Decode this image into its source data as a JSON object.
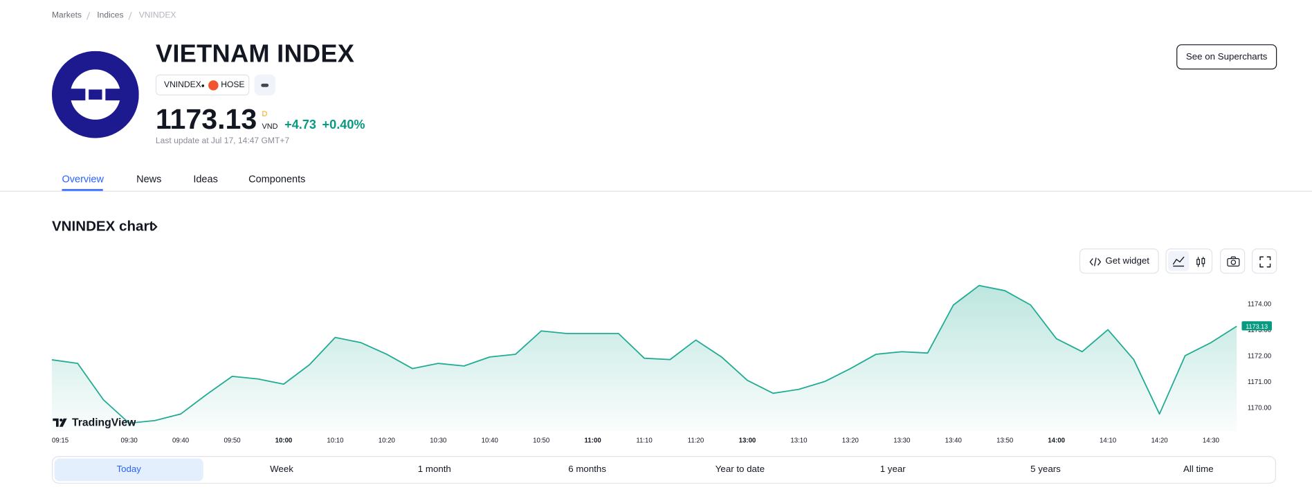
{
  "breadcrumbs": [
    "Markets",
    "Indices",
    "VNINDEX"
  ],
  "header": {
    "title": "VIETNAM INDEX",
    "symbol": "VNINDEX",
    "exchange": "HOSE",
    "price": "1173.13",
    "interval": "D",
    "currency": "VND",
    "change": "+4.73",
    "change_percent": "+0.40%",
    "last_update": "Last update at Jul 17, 14:47 GMT+7",
    "button": "See on Supercharts"
  },
  "tabs": [
    "Overview",
    "News",
    "Ideas",
    "Components"
  ],
  "chart_section": {
    "title": "VNINDEX chart",
    "get_widget": "Get widget",
    "branding": "TradingView",
    "ranges": [
      "Today",
      "Week",
      "1 month",
      "6 months",
      "Year to date",
      "1 year",
      "5 years",
      "All time"
    ]
  },
  "chart_data": {
    "type": "area",
    "color": "#22ab94",
    "x": [
      "09:15",
      "09:20",
      "09:25",
      "09:30",
      "09:35",
      "09:40",
      "09:45",
      "09:50",
      "09:55",
      "10:00",
      "10:05",
      "10:10",
      "10:15",
      "10:20",
      "10:25",
      "10:30",
      "10:35",
      "10:40",
      "10:45",
      "10:50",
      "10:55",
      "11:00",
      "11:05",
      "11:10",
      "11:15",
      "11:20",
      "11:25",
      "13:00",
      "13:05",
      "13:10",
      "13:15",
      "13:20",
      "13:25",
      "13:30",
      "13:35",
      "13:40",
      "13:45",
      "13:50",
      "13:55",
      "14:00",
      "14:05",
      "14:10",
      "14:15",
      "14:20",
      "14:25",
      "14:30",
      null
    ],
    "values": [
      1171.84,
      1171.7,
      1170.3,
      1169.4,
      1169.5,
      1169.75,
      1170.5,
      1171.2,
      1171.1,
      1170.9,
      1171.65,
      1172.7,
      1172.5,
      1172.05,
      1171.5,
      1171.7,
      1171.6,
      1171.95,
      1172.05,
      1172.95,
      1172.85,
      1172.85,
      1172.85,
      1171.9,
      1171.85,
      1172.6,
      1171.95,
      1171.05,
      1170.55,
      1170.7,
      1171.0,
      1171.5,
      1172.05,
      1172.15,
      1172.1,
      1173.95,
      1174.7,
      1174.5,
      1173.95,
      1172.65,
      1172.15,
      1173.0,
      1171.85,
      1169.75,
      1172.0,
      1172.5,
      1173.13
    ],
    "xticks": [
      "09:15",
      "09:30",
      "09:40",
      "09:50",
      "10:00",
      "10:10",
      "10:20",
      "10:30",
      "10:40",
      "10:50",
      "11:00",
      "11:10",
      "11:20",
      "13:00",
      "13:10",
      "13:20",
      "13:30",
      "13:40",
      "13:50",
      "14:00",
      "14:10",
      "14:20",
      "14:30"
    ],
    "ylim": [
      1169.1,
      1174.9
    ],
    "yticks": [
      {
        "value": 1170,
        "label": "1170.00"
      },
      {
        "value": 1171,
        "label": "1171.00"
      },
      {
        "value": 1172,
        "label": "1172.00"
      },
      {
        "value": 1173,
        "label": "1173.00"
      },
      {
        "value": 1174,
        "label": "1174.00"
      }
    ],
    "grid": false
  }
}
